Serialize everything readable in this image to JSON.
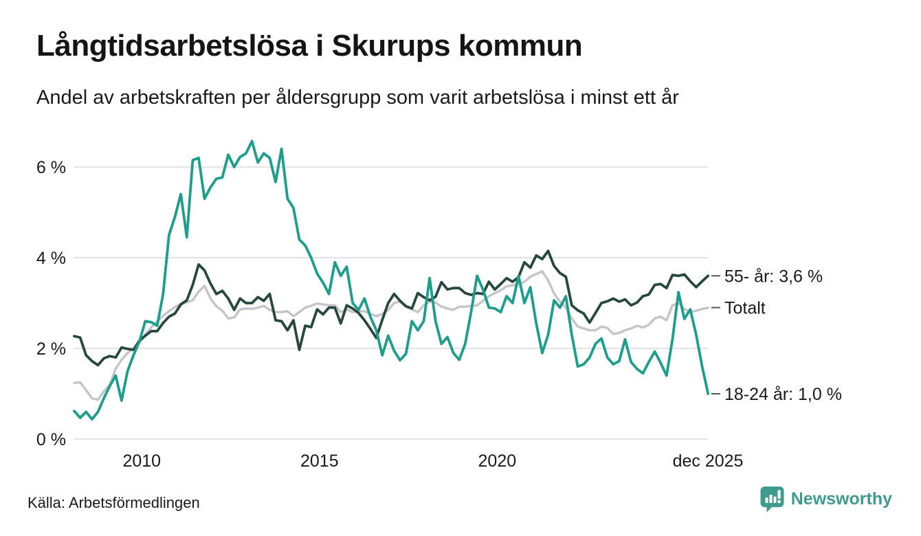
{
  "header": {
    "title": "Långtidsarbetslösa i Skurups kommun",
    "subtitle": "Andel av arbetskraften per åldersgrupp som varit arbetslösa i minst ett år"
  },
  "footer": {
    "source": "Källa: Arbetsförmedlingen",
    "brand": "Newsworthy",
    "brand_color": "#3f9b8e"
  },
  "chart_data": {
    "type": "line",
    "title": "Långtidsarbetslösa i Skurups kommun",
    "ylabel": "",
    "xlabel": "",
    "grid": "horizontal",
    "grid_color": "#e2e2e6",
    "legend_position": "right-end-annotations",
    "x_start": 2008.1,
    "x_step_years": 0.166667,
    "xlim": [
      2008.1,
      2025.93
    ],
    "ylim": [
      0,
      6.8
    ],
    "y_ticks": [
      {
        "label": "0 %",
        "value": 0
      },
      {
        "label": "2 %",
        "value": 2
      },
      {
        "label": "4 %",
        "value": 4
      },
      {
        "label": "6 %",
        "value": 6
      }
    ],
    "x_ticks": [
      {
        "label": "2010",
        "year": 2010
      },
      {
        "label": "2015",
        "year": 2015
      },
      {
        "label": "2020",
        "year": 2020
      },
      {
        "label": "dec 2025",
        "year": 2025.93
      }
    ],
    "series": [
      {
        "name": "Totalt",
        "end_label": "Totalt",
        "color": "#c5c4cb",
        "stroke_width": 3.4,
        "values": [
          1.24,
          1.25,
          1.08,
          0.9,
          0.87,
          1.05,
          1.2,
          1.55,
          1.75,
          1.9,
          2.0,
          2.12,
          2.3,
          2.46,
          2.6,
          2.72,
          2.82,
          2.91,
          2.98,
          3.02,
          3.06,
          3.25,
          3.38,
          3.1,
          2.93,
          2.83,
          2.66,
          2.68,
          2.86,
          2.88,
          2.87,
          2.9,
          2.94,
          2.85,
          2.8,
          2.8,
          2.82,
          2.71,
          2.8,
          2.9,
          2.94,
          2.99,
          2.97,
          2.95,
          2.95,
          2.8,
          2.86,
          2.8,
          2.82,
          2.82,
          2.76,
          2.71,
          2.76,
          2.84,
          3.0,
          3.03,
          2.92,
          2.86,
          2.8,
          2.95,
          3.03,
          3.01,
          2.92,
          2.88,
          2.85,
          2.92,
          2.92,
          2.94,
          2.95,
          3.05,
          3.15,
          3.22,
          3.28,
          3.37,
          3.39,
          3.41,
          3.47,
          3.58,
          3.64,
          3.7,
          3.5,
          3.21,
          3.03,
          2.9,
          2.66,
          2.48,
          2.44,
          2.4,
          2.4,
          2.48,
          2.45,
          2.32,
          2.34,
          2.4,
          2.44,
          2.5,
          2.46,
          2.52,
          2.66,
          2.7,
          2.62,
          2.95,
          3.0,
          2.87,
          2.8,
          2.83,
          2.87,
          2.9
        ]
      },
      {
        "name": "55- år",
        "end_label": "55- år: 3,6 %",
        "color": "#27493d",
        "stroke_width": 3.8,
        "values": [
          2.27,
          2.24,
          1.85,
          1.72,
          1.63,
          1.78,
          1.83,
          1.8,
          2.02,
          1.99,
          1.97,
          2.17,
          2.28,
          2.38,
          2.38,
          2.56,
          2.7,
          2.77,
          2.97,
          3.06,
          3.4,
          3.85,
          3.72,
          3.43,
          3.2,
          3.27,
          3.1,
          2.85,
          3.1,
          3.0,
          3.0,
          3.13,
          3.05,
          3.2,
          2.62,
          2.6,
          2.4,
          2.62,
          1.97,
          2.5,
          2.47,
          2.86,
          2.75,
          2.9,
          2.9,
          2.55,
          2.95,
          2.88,
          2.78,
          2.62,
          2.43,
          2.23,
          2.63,
          3.0,
          3.2,
          3.05,
          2.93,
          2.88,
          3.22,
          3.13,
          3.06,
          3.14,
          3.46,
          3.3,
          3.33,
          3.33,
          3.22,
          3.18,
          3.22,
          3.2,
          3.47,
          3.3,
          3.42,
          3.55,
          3.47,
          3.57,
          3.9,
          3.78,
          4.05,
          3.97,
          4.15,
          3.82,
          3.66,
          3.58,
          2.95,
          2.84,
          2.77,
          2.57,
          2.78,
          3.0,
          3.04,
          3.1,
          3.03,
          3.08,
          2.95,
          3.01,
          3.15,
          3.19,
          3.4,
          3.42,
          3.33,
          3.62,
          3.6,
          3.63,
          3.48,
          3.35,
          3.48,
          3.6
        ]
      },
      {
        "name": "18-24 år",
        "end_label": "18-24 år: 1,0 %",
        "color": "#1b9e8c",
        "stroke_width": 3.8,
        "values": [
          0.62,
          0.47,
          0.6,
          0.44,
          0.6,
          0.9,
          1.17,
          1.4,
          0.85,
          1.5,
          1.85,
          2.15,
          2.6,
          2.58,
          2.5,
          3.2,
          4.5,
          4.9,
          5.4,
          4.45,
          6.15,
          6.2,
          5.3,
          5.55,
          5.74,
          5.77,
          6.27,
          6.0,
          6.22,
          6.3,
          6.57,
          6.1,
          6.3,
          6.2,
          5.67,
          6.4,
          5.3,
          5.1,
          4.4,
          4.27,
          4.0,
          3.65,
          3.45,
          3.2,
          3.9,
          3.6,
          3.8,
          3.0,
          2.85,
          3.1,
          2.7,
          2.4,
          1.85,
          2.28,
          1.95,
          1.74,
          1.88,
          2.6,
          2.4,
          2.6,
          3.55,
          2.6,
          2.1,
          2.25,
          1.9,
          1.75,
          2.1,
          2.8,
          3.6,
          3.3,
          2.9,
          2.88,
          2.8,
          3.15,
          3.0,
          3.6,
          3.0,
          3.35,
          2.55,
          1.9,
          2.3,
          3.06,
          2.9,
          3.15,
          2.3,
          1.6,
          1.65,
          1.8,
          2.1,
          2.22,
          1.8,
          1.65,
          1.72,
          2.2,
          1.7,
          1.55,
          1.45,
          1.7,
          1.93,
          1.68,
          1.4,
          2.21,
          3.24,
          2.65,
          2.86,
          2.3,
          1.6,
          1.0
        ]
      }
    ]
  }
}
